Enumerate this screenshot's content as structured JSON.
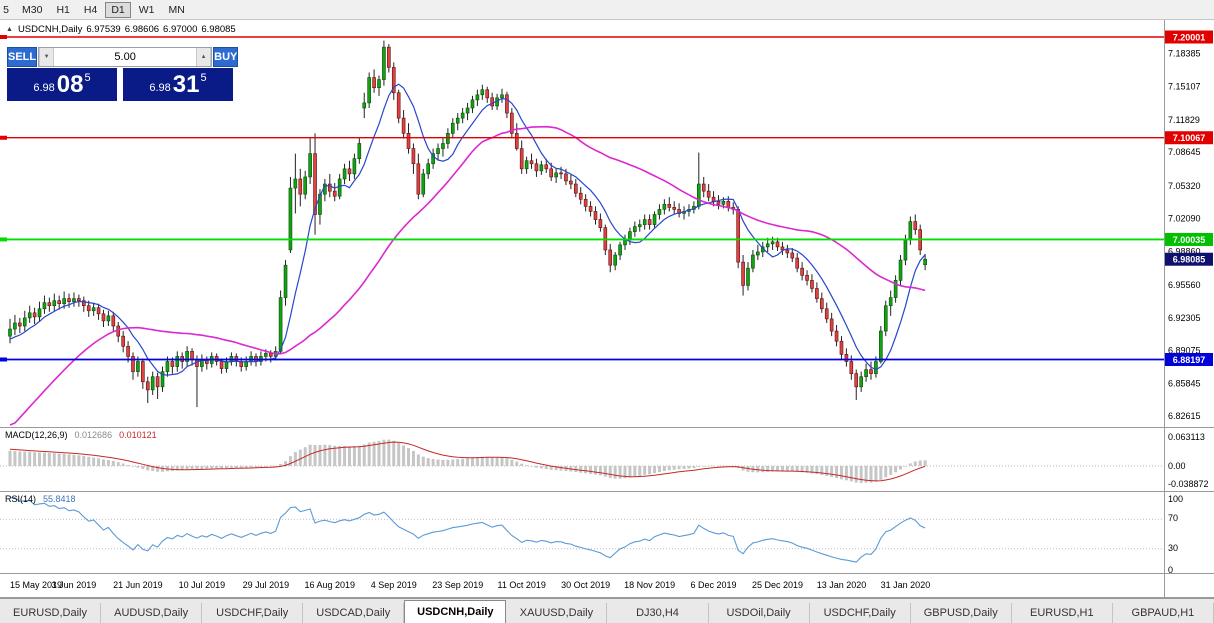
{
  "toolbar": {
    "timeframes": [
      {
        "label": "5",
        "active": false
      },
      {
        "label": "M30",
        "active": false
      },
      {
        "label": "H1",
        "active": false
      },
      {
        "label": "H4",
        "active": false
      },
      {
        "label": "D1",
        "active": true
      },
      {
        "label": "W1",
        "active": false
      },
      {
        "label": "MN",
        "active": false
      }
    ]
  },
  "chart_header": {
    "symbol_period": "USDCNH,Daily",
    "open": "6.97539",
    "high": "6.98606",
    "low": "6.97000",
    "close": "6.98085"
  },
  "icons": {
    "spinner_up": "▲",
    "spinner_down": "▼",
    "shift_marker": "▲"
  },
  "trade_panel": {
    "sell_label": "SELL",
    "buy_label": "BUY",
    "volume": "5.00",
    "bid": {
      "prefix": "6.98",
      "big": "08",
      "sup": "5"
    },
    "ask": {
      "prefix": "6.98",
      "big": "31",
      "sup": "5"
    }
  },
  "price_axis": {
    "ticks": [
      "7.18385",
      "7.15107",
      "7.11829",
      "7.08645",
      "7.05320",
      "7.02090",
      "6.98860",
      "6.95560",
      "6.92305",
      "6.89075",
      "6.85845",
      "6.82615"
    ],
    "badges": [
      {
        "value": "7.20001",
        "price": 7.20001,
        "color": "#e00000",
        "name": "resistance-badge-7-20001"
      },
      {
        "value": "7.10067",
        "price": 7.10067,
        "color": "#e00000",
        "name": "resistance-badge-7-10067"
      },
      {
        "value": "7.00035",
        "price": 7.00035,
        "color": "#00c000",
        "name": "level-badge-7-00035"
      },
      {
        "value": "6.88197",
        "price": 6.88197,
        "color": "#0000d8",
        "name": "support-badge-6-88197"
      },
      {
        "value": "6.98085",
        "price": 6.98085,
        "color": "#10116e",
        "name": "current-price-badge"
      }
    ]
  },
  "hlines": [
    {
      "price": 7.20001,
      "color": "#e00000",
      "width": 1.4
    },
    {
      "price": 7.10067,
      "color": "#e00000",
      "width": 1.4
    },
    {
      "price": 7.00035,
      "color": "#00dd00",
      "width": 1.8
    },
    {
      "price": 6.88197,
      "color": "#0000e0",
      "width": 1.8
    }
  ],
  "indicators": {
    "macd": {
      "label": "MACD(12,26,9)",
      "value_main": "0.012686",
      "value_signal": "0.010121",
      "axis": [
        "0.063113",
        "0.00",
        "-0.038872"
      ]
    },
    "rsi": {
      "label": "RSI(14)",
      "value": "55.8418",
      "axis": [
        "100",
        "70",
        "30",
        "0"
      ],
      "levels": [
        70,
        30
      ]
    }
  },
  "date_axis": [
    "15 May 2019",
    "3 Jun 2019",
    "21 Jun 2019",
    "10 Jul 2019",
    "29 Jul 2019",
    "16 Aug 2019",
    "4 Sep 2019",
    "23 Sep 2019",
    "11 Oct 2019",
    "30 Oct 2019",
    "18 Nov 2019",
    "6 Dec 2019",
    "25 Dec 2019",
    "13 Jan 2020",
    "31 Jan 2020"
  ],
  "tabs": [
    {
      "label": "EURUSD,Daily",
      "active": false
    },
    {
      "label": "AUDUSD,Daily",
      "active": false
    },
    {
      "label": "USDCHF,Daily",
      "active": false
    },
    {
      "label": "USDCAD,Daily",
      "active": false
    },
    {
      "label": "USDCNH,Daily",
      "active": true
    },
    {
      "label": "XAUUSD,Daily",
      "active": false
    },
    {
      "label": "DJ30,H4",
      "active": false
    },
    {
      "label": "USDOil,Daily",
      "active": false
    },
    {
      "label": "USDCHF,Daily",
      "active": false
    },
    {
      "label": "GBPUSD,Daily",
      "active": false
    },
    {
      "label": "EURUSD,H1",
      "active": false
    },
    {
      "label": "GBPAUD,H1",
      "active": false
    }
  ],
  "chart_data": {
    "type": "candlestick",
    "symbol": "USDCNH",
    "timeframe": "Daily",
    "last_bar": {
      "open": 6.97539,
      "high": 6.98606,
      "low": 6.97,
      "close": 6.98085
    },
    "ylim": [
      6.816,
      7.2168
    ],
    "label_indices": [
      0,
      13,
      26,
      39,
      52,
      65,
      78,
      91,
      104,
      117,
      130,
      143,
      156,
      169,
      182
    ],
    "ma_fast_period": 8,
    "ma_slow_period": 40,
    "colors": {
      "bull": "#12a312",
      "bear": "#e04141",
      "ma_fast": "#2746cb",
      "ma_slow": "#dc28cf",
      "macd_hist": "#c6c6c6",
      "macd_signal": "#c62828",
      "rsi": "#5b9bd5"
    },
    "prehistory_closes": [
      6.7,
      6.703,
      6.706,
      6.71,
      6.713,
      6.716,
      6.72,
      6.724,
      6.728,
      6.732,
      6.736,
      6.74,
      6.746,
      6.752,
      6.758,
      6.764,
      6.772,
      6.78,
      6.79,
      6.8,
      6.81,
      6.822,
      6.834,
      6.846,
      6.856,
      6.866,
      6.874,
      6.88,
      6.886,
      6.89,
      6.894,
      6.897,
      6.899,
      6.9,
      6.9,
      6.899,
      6.899,
      6.9,
      6.902,
      6.904
    ],
    "ohlc": [
      [
        6.905,
        6.922,
        6.898,
        6.912
      ],
      [
        6.912,
        6.926,
        6.906,
        6.918
      ],
      [
        6.918,
        6.923,
        6.908,
        6.915
      ],
      [
        6.915,
        6.93,
        6.91,
        6.923
      ],
      [
        6.923,
        6.935,
        6.918,
        6.928
      ],
      [
        6.928,
        6.933,
        6.917,
        6.924
      ],
      [
        6.924,
        6.939,
        6.919,
        6.932
      ],
      [
        6.932,
        6.945,
        6.927,
        6.938
      ],
      [
        6.938,
        6.943,
        6.929,
        6.935
      ],
      [
        6.935,
        6.947,
        6.93,
        6.94
      ],
      [
        6.94,
        6.945,
        6.931,
        6.937
      ],
      [
        6.937,
        6.949,
        6.932,
        6.942
      ],
      [
        6.942,
        6.947,
        6.933,
        6.939
      ],
      [
        6.939,
        6.948,
        6.934,
        6.942
      ],
      [
        6.942,
        6.946,
        6.934,
        6.94
      ],
      [
        6.94,
        6.944,
        6.929,
        6.935
      ],
      [
        6.935,
        6.94,
        6.924,
        6.93
      ],
      [
        6.93,
        6.938,
        6.925,
        6.933
      ],
      [
        6.933,
        6.937,
        6.921,
        6.927
      ],
      [
        6.927,
        6.931,
        6.914,
        6.92
      ],
      [
        6.92,
        6.93,
        6.915,
        6.925
      ],
      [
        6.925,
        6.929,
        6.909,
        6.915
      ],
      [
        6.915,
        6.919,
        6.899,
        6.905
      ],
      [
        6.905,
        6.91,
        6.889,
        6.895
      ],
      [
        6.895,
        6.9,
        6.879,
        6.885
      ],
      [
        6.885,
        6.889,
        6.862,
        6.87
      ],
      [
        6.87,
        6.885,
        6.865,
        6.88
      ],
      [
        6.88,
        6.883,
        6.853,
        6.86
      ],
      [
        6.86,
        6.865,
        6.839,
        6.852
      ],
      [
        6.852,
        6.87,
        6.847,
        6.865
      ],
      [
        6.865,
        6.869,
        6.843,
        6.855
      ],
      [
        6.855,
        6.875,
        6.85,
        6.87
      ],
      [
        6.87,
        6.885,
        6.865,
        6.88
      ],
      [
        6.88,
        6.884,
        6.868,
        6.875
      ],
      [
        6.875,
        6.89,
        6.87,
        6.885
      ],
      [
        6.885,
        6.889,
        6.873,
        6.88
      ],
      [
        6.88,
        6.895,
        6.875,
        6.89
      ],
      [
        6.89,
        6.893,
        6.876,
        6.882
      ],
      [
        6.882,
        6.886,
        6.835,
        6.875
      ],
      [
        6.875,
        6.887,
        6.87,
        6.882
      ],
      [
        6.882,
        6.885,
        6.872,
        6.878
      ],
      [
        6.878,
        6.889,
        6.874,
        6.885
      ],
      [
        6.885,
        6.888,
        6.876,
        6.88
      ],
      [
        6.88,
        6.883,
        6.868,
        6.873
      ],
      [
        6.873,
        6.884,
        6.869,
        6.88
      ],
      [
        6.88,
        6.889,
        6.876,
        6.885
      ],
      [
        6.885,
        6.888,
        6.875,
        6.88
      ],
      [
        6.88,
        6.884,
        6.87,
        6.875
      ],
      [
        6.875,
        6.885,
        6.871,
        6.88
      ],
      [
        6.88,
        6.89,
        6.876,
        6.885
      ],
      [
        6.885,
        6.888,
        6.875,
        6.88
      ],
      [
        6.88,
        6.89,
        6.876,
        6.885
      ],
      [
        6.885,
        6.892,
        6.88,
        6.888
      ],
      [
        6.888,
        6.891,
        6.879,
        6.885
      ],
      [
        6.885,
        6.895,
        6.881,
        6.89
      ],
      [
        6.89,
        6.95,
        6.887,
        6.943
      ],
      [
        6.943,
        6.98,
        6.935,
        6.975
      ],
      [
        6.99,
        7.062,
        6.987,
        7.051
      ],
      [
        7.051,
        7.085,
        7.026,
        7.06
      ],
      [
        7.06,
        7.07,
        7.033,
        7.045
      ],
      [
        7.045,
        7.068,
        7.04,
        7.062
      ],
      [
        7.062,
        7.1,
        7.055,
        7.085
      ],
      [
        7.085,
        7.105,
        7.005,
        7.025
      ],
      [
        7.025,
        7.05,
        7.015,
        7.045
      ],
      [
        7.045,
        7.06,
        7.038,
        7.055
      ],
      [
        7.055,
        7.065,
        7.042,
        7.048
      ],
      [
        7.048,
        7.056,
        7.038,
        7.043
      ],
      [
        7.043,
        7.065,
        7.04,
        7.06
      ],
      [
        7.06,
        7.075,
        7.055,
        7.07
      ],
      [
        7.07,
        7.078,
        7.058,
        7.065
      ],
      [
        7.065,
        7.085,
        7.06,
        7.08
      ],
      [
        7.08,
        7.1,
        7.075,
        7.095
      ],
      [
        7.13,
        7.145,
        7.12,
        7.135
      ],
      [
        7.135,
        7.165,
        7.13,
        7.16
      ],
      [
        7.16,
        7.168,
        7.145,
        7.15
      ],
      [
        7.15,
        7.162,
        7.142,
        7.158
      ],
      [
        7.158,
        7.1965,
        7.152,
        7.19
      ],
      [
        7.19,
        7.193,
        7.165,
        7.17
      ],
      [
        7.17,
        7.175,
        7.138,
        7.145
      ],
      [
        7.145,
        7.148,
        7.115,
        7.12
      ],
      [
        7.12,
        7.128,
        7.1,
        7.105
      ],
      [
        7.105,
        7.115,
        7.085,
        7.09
      ],
      [
        7.09,
        7.095,
        7.065,
        7.075
      ],
      [
        7.075,
        7.085,
        7.04,
        7.045
      ],
      [
        7.045,
        7.07,
        7.042,
        7.065
      ],
      [
        7.065,
        7.08,
        7.06,
        7.075
      ],
      [
        7.075,
        7.09,
        7.07,
        7.085
      ],
      [
        7.085,
        7.095,
        7.078,
        7.09
      ],
      [
        7.09,
        7.1,
        7.082,
        7.095
      ],
      [
        7.095,
        7.11,
        7.09,
        7.105
      ],
      [
        7.105,
        7.12,
        7.1,
        7.115
      ],
      [
        7.115,
        7.125,
        7.108,
        7.12
      ],
      [
        7.12,
        7.13,
        7.115,
        7.125
      ],
      [
        7.125,
        7.135,
        7.118,
        7.13
      ],
      [
        7.13,
        7.142,
        7.125,
        7.138
      ],
      [
        7.138,
        7.148,
        7.132,
        7.143
      ],
      [
        7.143,
        7.153,
        7.138,
        7.148
      ],
      [
        7.148,
        7.151,
        7.135,
        7.14
      ],
      [
        7.14,
        7.145,
        7.128,
        7.132
      ],
      [
        7.132,
        7.144,
        7.128,
        7.14
      ],
      [
        7.14,
        7.149,
        7.135,
        7.143
      ],
      [
        7.143,
        7.146,
        7.12,
        7.125
      ],
      [
        7.125,
        7.13,
        7.1,
        7.105
      ],
      [
        7.105,
        7.115,
        7.088,
        7.09
      ],
      [
        7.09,
        7.098,
        7.065,
        7.07
      ],
      [
        7.07,
        7.082,
        7.065,
        7.078
      ],
      [
        7.078,
        7.085,
        7.07,
        7.075
      ],
      [
        7.075,
        7.08,
        7.062,
        7.068
      ],
      [
        7.068,
        7.078,
        7.064,
        7.074
      ],
      [
        7.074,
        7.08,
        7.066,
        7.07
      ],
      [
        7.07,
        7.076,
        7.058,
        7.062
      ],
      [
        7.062,
        7.07,
        7.056,
        7.066
      ],
      [
        7.066,
        7.072,
        7.06,
        7.065
      ],
      [
        7.065,
        7.07,
        7.054,
        7.058
      ],
      [
        7.058,
        7.064,
        7.05,
        7.055
      ],
      [
        7.055,
        7.06,
        7.042,
        7.046
      ],
      [
        7.046,
        7.052,
        7.035,
        7.04
      ],
      [
        7.04,
        7.045,
        7.028,
        7.033
      ],
      [
        7.033,
        7.038,
        7.023,
        7.028
      ],
      [
        7.028,
        7.033,
        7.015,
        7.02
      ],
      [
        7.02,
        7.026,
        7.008,
        7.012
      ],
      [
        7.012,
        7.015,
        6.985,
        6.99
      ],
      [
        6.99,
        6.996,
        6.968,
        6.975
      ],
      [
        6.975,
        6.988,
        6.97,
        6.985
      ],
      [
        6.985,
        6.998,
        6.98,
        6.995
      ],
      [
        6.995,
        7.005,
        6.99,
        7.0
      ],
      [
        7.0,
        7.012,
        6.995,
        7.008
      ],
      [
        7.008,
        7.018,
        7.003,
        7.013
      ],
      [
        7.013,
        7.02,
        7.008,
        7.015
      ],
      [
        7.015,
        7.025,
        7.01,
        7.02
      ],
      [
        7.02,
        7.025,
        7.01,
        7.015
      ],
      [
        7.015,
        7.028,
        7.012,
        7.025
      ],
      [
        7.025,
        7.035,
        7.02,
        7.03
      ],
      [
        7.03,
        7.04,
        7.025,
        7.035
      ],
      [
        7.035,
        7.042,
        7.028,
        7.032
      ],
      [
        7.032,
        7.038,
        7.025,
        7.03
      ],
      [
        7.03,
        7.036,
        7.022,
        7.026
      ],
      [
        7.026,
        7.033,
        7.02,
        7.028
      ],
      [
        7.028,
        7.035,
        7.023,
        7.03
      ],
      [
        7.03,
        7.038,
        7.026,
        7.033
      ],
      [
        7.033,
        7.086,
        7.03,
        7.055
      ],
      [
        7.055,
        7.062,
        7.042,
        7.048
      ],
      [
        7.048,
        7.055,
        7.038,
        7.042
      ],
      [
        7.042,
        7.048,
        7.033,
        7.038
      ],
      [
        7.038,
        7.044,
        7.03,
        7.035
      ],
      [
        7.035,
        7.042,
        7.031,
        7.038
      ],
      [
        7.038,
        7.043,
        7.028,
        7.032
      ],
      [
        7.032,
        7.037,
        7.025,
        7.03
      ],
      [
        7.03,
        7.033,
        6.972,
        6.978
      ],
      [
        6.978,
        6.985,
        6.945,
        6.955
      ],
      [
        6.955,
        6.978,
        6.95,
        6.972
      ],
      [
        6.972,
        6.99,
        6.968,
        6.985
      ],
      [
        6.985,
        6.995,
        6.98,
        6.988
      ],
      [
        6.988,
        6.998,
        6.983,
        6.993
      ],
      [
        6.993,
        7.002,
        6.988,
        6.996
      ],
      [
        6.996,
        7.003,
        6.99,
        6.998
      ],
      [
        6.998,
        7.002,
        6.989,
        6.993
      ],
      [
        6.993,
        6.998,
        6.985,
        6.99
      ],
      [
        6.99,
        6.995,
        6.982,
        6.987
      ],
      [
        6.987,
        6.992,
        6.978,
        6.982
      ],
      [
        6.982,
        6.987,
        6.968,
        6.972
      ],
      [
        6.972,
        6.978,
        6.96,
        6.965
      ],
      [
        6.965,
        6.97,
        6.955,
        6.96
      ],
      [
        6.96,
        6.966,
        6.948,
        6.952
      ],
      [
        6.952,
        6.958,
        6.938,
        6.942
      ],
      [
        6.942,
        6.948,
        6.928,
        6.932
      ],
      [
        6.932,
        6.938,
        6.918,
        6.922
      ],
      [
        6.922,
        6.928,
        6.905,
        6.91
      ],
      [
        6.91,
        6.916,
        6.895,
        6.9
      ],
      [
        6.9,
        6.905,
        6.882,
        6.887
      ],
      [
        6.887,
        6.893,
        6.875,
        6.88
      ],
      [
        6.88,
        6.886,
        6.862,
        6.868
      ],
      [
        6.868,
        6.872,
        6.842,
        6.855
      ],
      [
        6.855,
        6.87,
        6.85,
        6.865
      ],
      [
        6.865,
        6.878,
        6.86,
        6.872
      ],
      [
        6.872,
        6.88,
        6.862,
        6.868
      ],
      [
        6.868,
        6.885,
        6.864,
        6.88
      ],
      [
        6.88,
        6.915,
        6.878,
        6.91
      ],
      [
        6.91,
        6.94,
        6.905,
        6.935
      ],
      [
        6.935,
        6.95,
        6.925,
        6.943
      ],
      [
        6.943,
        6.965,
        6.938,
        6.96
      ],
      [
        6.96,
        6.985,
        6.955,
        6.98
      ],
      [
        6.98,
        7.005,
        6.975,
        7.0
      ],
      [
        7.0,
        7.023,
        6.995,
        7.018
      ],
      [
        7.018,
        7.025,
        7.005,
        7.01
      ],
      [
        7.01,
        7.015,
        6.985,
        6.99
      ],
      [
        6.97539,
        6.98606,
        6.97,
        6.98085
      ]
    ]
  }
}
